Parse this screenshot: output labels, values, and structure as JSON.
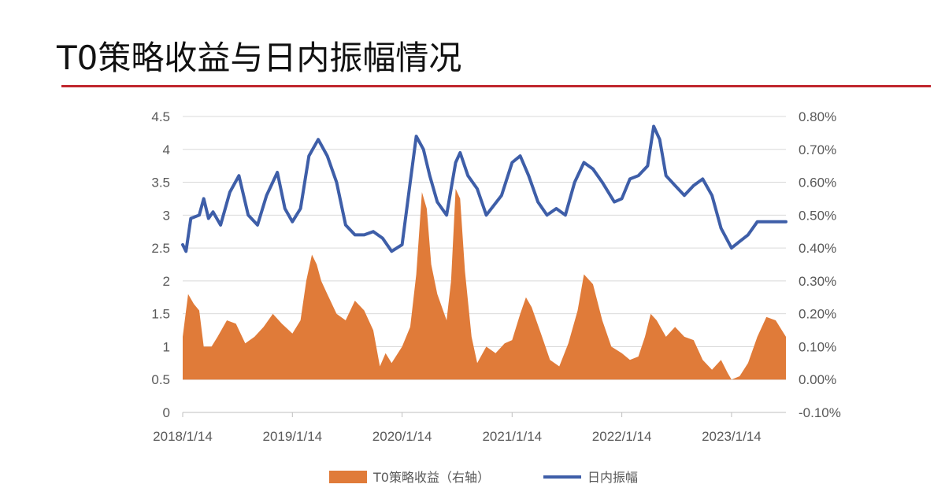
{
  "title": "T0策略收益与日内振幅情况",
  "chart_data": {
    "type": "area+line",
    "x_ticks": [
      "2018/1/14",
      "2019/1/14",
      "2020/1/14",
      "2021/1/14",
      "2022/1/14",
      "2023/1/14"
    ],
    "x_range": [
      "2018/1/14",
      "2023/7/14"
    ],
    "left_axis": {
      "ticks": [
        "0",
        "0.5",
        "1",
        "1.5",
        "2",
        "2.5",
        "3",
        "3.5",
        "4",
        "4.5"
      ],
      "ylim": [
        0,
        4.5
      ]
    },
    "right_axis": {
      "ticks": [
        "-0.10%",
        "0.00%",
        "0.10%",
        "0.20%",
        "0.30%",
        "0.40%",
        "0.50%",
        "0.60%",
        "0.70%",
        "0.80%"
      ],
      "ylim": [
        -0.001,
        0.008
      ]
    },
    "grid": true,
    "legend_position": "bottom",
    "series": [
      {
        "name": "T0策略收益（右轴）",
        "type": "area",
        "axis": "right",
        "color": "#e07b39",
        "points": [
          [
            "2018/1/14",
            0.0013
          ],
          [
            "2018/2/01",
            0.0026
          ],
          [
            "2018/2/20",
            0.0023
          ],
          [
            "2018/3/10",
            0.0021
          ],
          [
            "2018/3/25",
            0.001
          ],
          [
            "2018/4/20",
            0.001
          ],
          [
            "2018/5/10",
            0.0013
          ],
          [
            "2018/6/10",
            0.0018
          ],
          [
            "2018/7/10",
            0.0017
          ],
          [
            "2018/8/10",
            0.0011
          ],
          [
            "2018/9/10",
            0.0013
          ],
          [
            "2018/10/10",
            0.0016
          ],
          [
            "2018/11/10",
            0.002
          ],
          [
            "2018/12/10",
            0.0017
          ],
          [
            "2019/1/14",
            0.0014
          ],
          [
            "2019/2/10",
            0.0018
          ],
          [
            "2019/3/01",
            0.003
          ],
          [
            "2019/3/20",
            0.0038
          ],
          [
            "2019/4/05",
            0.0035
          ],
          [
            "2019/4/20",
            0.003
          ],
          [
            "2019/5/10",
            0.0026
          ],
          [
            "2019/6/10",
            0.002
          ],
          [
            "2019/7/10",
            0.0018
          ],
          [
            "2019/8/10",
            0.0024
          ],
          [
            "2019/9/10",
            0.0021
          ],
          [
            "2019/10/10",
            0.0015
          ],
          [
            "2019/11/01",
            0.0004
          ],
          [
            "2019/11/20",
            0.0008
          ],
          [
            "2019/12/10",
            0.0005
          ],
          [
            "2020/1/14",
            0.001
          ],
          [
            "2020/2/10",
            0.0016
          ],
          [
            "2020/3/01",
            0.0032
          ],
          [
            "2020/3/20",
            0.0057
          ],
          [
            "2020/4/05",
            0.0052
          ],
          [
            "2020/4/20",
            0.0035
          ],
          [
            "2020/5/10",
            0.0026
          ],
          [
            "2020/6/10",
            0.0018
          ],
          [
            "2020/6/25",
            0.003
          ],
          [
            "2020/7/10",
            0.0058
          ],
          [
            "2020/7/25",
            0.0055
          ],
          [
            "2020/8/10",
            0.0033
          ],
          [
            "2020/9/01",
            0.0013
          ],
          [
            "2020/9/20",
            0.0005
          ],
          [
            "2020/10/20",
            0.001
          ],
          [
            "2020/11/20",
            0.0008
          ],
          [
            "2020/12/20",
            0.0011
          ],
          [
            "2021/1/14",
            0.0012
          ],
          [
            "2021/2/10",
            0.002
          ],
          [
            "2021/3/01",
            0.0025
          ],
          [
            "2021/3/20",
            0.0022
          ],
          [
            "2021/4/20",
            0.0014
          ],
          [
            "2021/5/20",
            0.0006
          ],
          [
            "2021/6/20",
            0.0004
          ],
          [
            "2021/7/20",
            0.0011
          ],
          [
            "2021/8/20",
            0.0021
          ],
          [
            "2021/9/10",
            0.0032
          ],
          [
            "2021/10/10",
            0.0029
          ],
          [
            "2021/11/10",
            0.0018
          ],
          [
            "2021/12/10",
            0.001
          ],
          [
            "2022/1/14",
            0.0008
          ],
          [
            "2022/2/10",
            0.0006
          ],
          [
            "2022/3/10",
            0.0007
          ],
          [
            "2022/4/01",
            0.0013
          ],
          [
            "2022/4/20",
            0.002
          ],
          [
            "2022/5/10",
            0.0018
          ],
          [
            "2022/6/10",
            0.0013
          ],
          [
            "2022/7/10",
            0.0016
          ],
          [
            "2022/8/10",
            0.0013
          ],
          [
            "2022/9/10",
            0.0012
          ],
          [
            "2022/10/10",
            0.0006
          ],
          [
            "2022/11/10",
            0.0003
          ],
          [
            "2022/12/10",
            0.0006
          ],
          [
            "2023/1/01",
            0.0002
          ],
          [
            "2023/1/14",
            0.0
          ],
          [
            "2023/2/10",
            0.0001
          ],
          [
            "2023/3/10",
            0.0005
          ],
          [
            "2023/4/10",
            0.0013
          ],
          [
            "2023/5/10",
            0.0019
          ],
          [
            "2023/6/10",
            0.0018
          ],
          [
            "2023/7/14",
            0.0013
          ]
        ]
      },
      {
        "name": "日内振幅",
        "type": "line",
        "axis": "left",
        "color": "#3e5ea8",
        "points": [
          [
            "2018/1/14",
            2.55
          ],
          [
            "2018/1/25",
            2.45
          ],
          [
            "2018/2/10",
            2.95
          ],
          [
            "2018/3/10",
            3.0
          ],
          [
            "2018/3/25",
            3.25
          ],
          [
            "2018/4/10",
            2.95
          ],
          [
            "2018/4/25",
            3.05
          ],
          [
            "2018/5/20",
            2.85
          ],
          [
            "2018/6/20",
            3.35
          ],
          [
            "2018/7/20",
            3.6
          ],
          [
            "2018/8/20",
            3.0
          ],
          [
            "2018/9/20",
            2.85
          ],
          [
            "2018/10/20",
            3.3
          ],
          [
            "2018/11/25",
            3.65
          ],
          [
            "2018/12/20",
            3.1
          ],
          [
            "2019/1/14",
            2.9
          ],
          [
            "2019/2/10",
            3.1
          ],
          [
            "2019/3/10",
            3.9
          ],
          [
            "2019/4/10",
            4.15
          ],
          [
            "2019/5/10",
            3.9
          ],
          [
            "2019/6/10",
            3.5
          ],
          [
            "2019/7/10",
            2.85
          ],
          [
            "2019/8/10",
            2.7
          ],
          [
            "2019/9/10",
            2.7
          ],
          [
            "2019/10/10",
            2.75
          ],
          [
            "2019/11/10",
            2.65
          ],
          [
            "2019/12/10",
            2.45
          ],
          [
            "2020/1/14",
            2.55
          ],
          [
            "2020/2/10",
            3.5
          ],
          [
            "2020/3/01",
            4.2
          ],
          [
            "2020/3/25",
            4.0
          ],
          [
            "2020/4/15",
            3.6
          ],
          [
            "2020/5/10",
            3.2
          ],
          [
            "2020/6/10",
            3.0
          ],
          [
            "2020/7/10",
            3.8
          ],
          [
            "2020/7/25",
            3.95
          ],
          [
            "2020/8/20",
            3.6
          ],
          [
            "2020/9/20",
            3.4
          ],
          [
            "2020/10/20",
            3.0
          ],
          [
            "2020/12/10",
            3.3
          ],
          [
            "2021/1/14",
            3.8
          ],
          [
            "2021/2/10",
            3.9
          ],
          [
            "2021/3/10",
            3.6
          ],
          [
            "2021/4/10",
            3.2
          ],
          [
            "2021/5/10",
            3.0
          ],
          [
            "2021/6/10",
            3.1
          ],
          [
            "2021/7/10",
            3.0
          ],
          [
            "2021/8/10",
            3.5
          ],
          [
            "2021/9/10",
            3.8
          ],
          [
            "2021/10/10",
            3.7
          ],
          [
            "2021/11/10",
            3.5
          ],
          [
            "2021/12/20",
            3.2
          ],
          [
            "2022/1/14",
            3.25
          ],
          [
            "2022/2/10",
            3.55
          ],
          [
            "2022/3/10",
            3.6
          ],
          [
            "2022/4/10",
            3.75
          ],
          [
            "2022/4/30",
            4.35
          ],
          [
            "2022/5/20",
            4.15
          ],
          [
            "2022/6/10",
            3.6
          ],
          [
            "2022/7/10",
            3.45
          ],
          [
            "2022/8/10",
            3.3
          ],
          [
            "2022/9/10",
            3.45
          ],
          [
            "2022/10/10",
            3.55
          ],
          [
            "2022/11/10",
            3.3
          ],
          [
            "2022/12/10",
            2.8
          ],
          [
            "2023/1/14",
            2.5
          ],
          [
            "2023/2/10",
            2.6
          ],
          [
            "2023/3/10",
            2.7
          ],
          [
            "2023/4/10",
            2.9
          ],
          [
            "2023/5/10",
            2.9
          ],
          [
            "2023/6/10",
            2.9
          ],
          [
            "2023/7/14",
            2.9
          ]
        ]
      }
    ]
  }
}
